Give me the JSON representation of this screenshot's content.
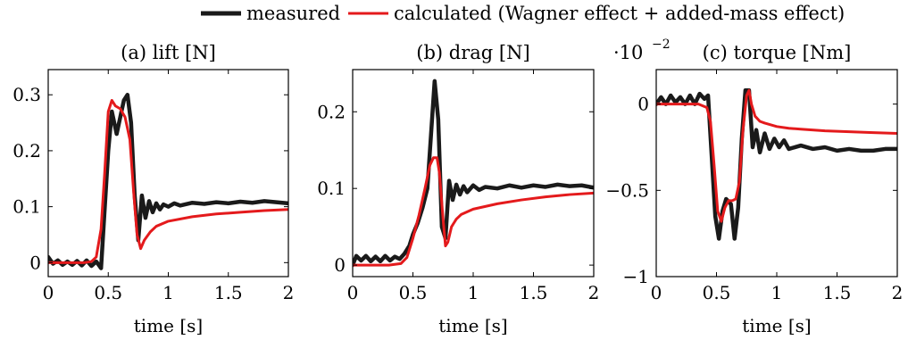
{
  "legend": {
    "items": [
      {
        "label": "measured",
        "color": "#1a1a1a"
      },
      {
        "label": "calculated (Wagner effect + added-mass effect)",
        "color": "#e41a1c"
      }
    ]
  },
  "chart_data": [
    {
      "type": "line",
      "title": "(a) lift [N]",
      "xlabel": "time [s]",
      "ylabel": "",
      "xlim": [
        0,
        2
      ],
      "ylim": [
        -0.025,
        0.345
      ],
      "xticks": [
        0,
        0.5,
        1,
        1.5,
        2
      ],
      "xtick_labels": [
        "0",
        "0.5",
        "1",
        "1.5",
        "2"
      ],
      "yticks": [
        0,
        0.1,
        0.2,
        0.3
      ],
      "ytick_labels": [
        "0",
        "0.1",
        "0.2",
        "0.3"
      ],
      "grid": false,
      "series": [
        {
          "name": "measured",
          "color": "#1a1a1a",
          "x": [
            0,
            0.04,
            0.08,
            0.12,
            0.16,
            0.2,
            0.24,
            0.28,
            0.32,
            0.36,
            0.4,
            0.44,
            0.46,
            0.5,
            0.53,
            0.57,
            0.6,
            0.63,
            0.66,
            0.69,
            0.72,
            0.75,
            0.78,
            0.81,
            0.84,
            0.87,
            0.9,
            0.93,
            0.96,
            1.0,
            1.05,
            1.1,
            1.2,
            1.3,
            1.4,
            1.5,
            1.6,
            1.7,
            1.8,
            1.9,
            2.0
          ],
          "y": [
            0.01,
            -0.002,
            0.004,
            -0.004,
            0.002,
            -0.004,
            0.003,
            -0.005,
            0.004,
            -0.006,
            0.002,
            -0.01,
            0.06,
            0.2,
            0.27,
            0.23,
            0.26,
            0.29,
            0.3,
            0.25,
            0.12,
            0.04,
            0.12,
            0.08,
            0.11,
            0.09,
            0.106,
            0.095,
            0.104,
            0.1,
            0.106,
            0.102,
            0.107,
            0.105,
            0.108,
            0.106,
            0.109,
            0.107,
            0.11,
            0.108,
            0.106
          ]
        },
        {
          "name": "calculated (Wagner effect + added-mass effect)",
          "color": "#e41a1c",
          "x": [
            0,
            0.3,
            0.36,
            0.4,
            0.44,
            0.47,
            0.5,
            0.53,
            0.56,
            0.6,
            0.64,
            0.68,
            0.71,
            0.74,
            0.77,
            0.8,
            0.85,
            0.9,
            1.0,
            1.2,
            1.4,
            1.6,
            1.8,
            2.0
          ],
          "y": [
            0,
            0,
            0.002,
            0.01,
            0.06,
            0.16,
            0.27,
            0.29,
            0.28,
            0.275,
            0.26,
            0.22,
            0.13,
            0.05,
            0.025,
            0.04,
            0.055,
            0.065,
            0.074,
            0.082,
            0.087,
            0.09,
            0.093,
            0.095
          ]
        }
      ]
    },
    {
      "type": "line",
      "title": "(b) drag [N]",
      "xlabel": "time [s]",
      "ylabel": "",
      "xlim": [
        0,
        2
      ],
      "ylim": [
        -0.015,
        0.255
      ],
      "xticks": [
        0,
        0.5,
        1,
        1.5,
        2
      ],
      "xtick_labels": [
        "0",
        "0.5",
        "1",
        "1.5",
        "2"
      ],
      "yticks": [
        0,
        0.1,
        0.2
      ],
      "ytick_labels": [
        "0",
        "0.1",
        "0.2"
      ],
      "grid": false,
      "series": [
        {
          "name": "measured",
          "color": "#1a1a1a",
          "x": [
            0,
            0.03,
            0.07,
            0.11,
            0.15,
            0.19,
            0.23,
            0.27,
            0.31,
            0.35,
            0.39,
            0.43,
            0.47,
            0.5,
            0.54,
            0.58,
            0.62,
            0.65,
            0.68,
            0.71,
            0.74,
            0.77,
            0.8,
            0.83,
            0.86,
            0.89,
            0.92,
            0.95,
            1.0,
            1.05,
            1.1,
            1.2,
            1.3,
            1.4,
            1.5,
            1.6,
            1.7,
            1.8,
            1.9,
            2.0
          ],
          "y": [
            0.0,
            0.012,
            0.006,
            0.012,
            0.005,
            0.011,
            0.005,
            0.012,
            0.006,
            0.011,
            0.008,
            0.015,
            0.025,
            0.04,
            0.055,
            0.075,
            0.1,
            0.17,
            0.24,
            0.19,
            0.05,
            0.035,
            0.11,
            0.085,
            0.105,
            0.092,
            0.103,
            0.095,
            0.104,
            0.098,
            0.102,
            0.1,
            0.104,
            0.101,
            0.104,
            0.102,
            0.105,
            0.103,
            0.104,
            0.101
          ]
        },
        {
          "name": "calculated (Wagner effect + added-mass effect)",
          "color": "#e41a1c",
          "x": [
            0,
            0.3,
            0.4,
            0.45,
            0.5,
            0.55,
            0.6,
            0.64,
            0.67,
            0.7,
            0.72,
            0.75,
            0.77,
            0.79,
            0.82,
            0.86,
            0.9,
            1.0,
            1.2,
            1.4,
            1.6,
            1.8,
            2.0
          ],
          "y": [
            0,
            0,
            0.002,
            0.01,
            0.035,
            0.065,
            0.1,
            0.13,
            0.14,
            0.14,
            0.12,
            0.06,
            0.025,
            0.03,
            0.05,
            0.06,
            0.066,
            0.073,
            0.08,
            0.085,
            0.089,
            0.092,
            0.094
          ]
        }
      ]
    },
    {
      "type": "line",
      "title": "(c) torque [Nm]",
      "scale_label_base": "·10",
      "scale_label_exp": "−2",
      "xlabel": "time [s]",
      "ylabel": "",
      "xlim": [
        0,
        2
      ],
      "ylim": [
        -1.0,
        0.2
      ],
      "xticks": [
        0,
        0.5,
        1,
        1.5,
        2
      ],
      "xtick_labels": [
        "0",
        "0.5",
        "1",
        "1.5",
        "2"
      ],
      "yticks": [
        0,
        -0.5,
        -1
      ],
      "ytick_labels": [
        "0",
        "−0.5",
        "−1"
      ],
      "grid": false,
      "series": [
        {
          "name": "measured",
          "color": "#1a1a1a",
          "x": [
            0,
            0.04,
            0.08,
            0.12,
            0.16,
            0.2,
            0.24,
            0.28,
            0.32,
            0.36,
            0.4,
            0.43,
            0.46,
            0.49,
            0.52,
            0.55,
            0.58,
            0.62,
            0.65,
            0.68,
            0.71,
            0.74,
            0.77,
            0.8,
            0.83,
            0.86,
            0.9,
            0.94,
            0.98,
            1.02,
            1.06,
            1.1,
            1.2,
            1.3,
            1.4,
            1.5,
            1.6,
            1.7,
            1.8,
            1.9,
            2.0
          ],
          "y": [
            0.0,
            0.04,
            0.0,
            0.05,
            0.01,
            0.04,
            0.0,
            0.05,
            0.0,
            0.06,
            0.03,
            0.05,
            -0.3,
            -0.65,
            -0.78,
            -0.62,
            -0.55,
            -0.58,
            -0.78,
            -0.6,
            -0.2,
            0.08,
            0.08,
            -0.25,
            -0.15,
            -0.28,
            -0.17,
            -0.26,
            -0.2,
            -0.25,
            -0.21,
            -0.26,
            -0.24,
            -0.26,
            -0.25,
            -0.27,
            -0.26,
            -0.27,
            -0.27,
            -0.26,
            -0.26
          ]
        },
        {
          "name": "calculated (Wagner effect + added-mass effect)",
          "color": "#e41a1c",
          "x": [
            0,
            0.35,
            0.42,
            0.45,
            0.48,
            0.51,
            0.54,
            0.57,
            0.6,
            0.63,
            0.66,
            0.69,
            0.72,
            0.75,
            0.77,
            0.79,
            0.82,
            0.86,
            0.9,
            1.0,
            1.1,
            1.2,
            1.4,
            1.6,
            1.8,
            2.0
          ],
          "y": [
            0,
            0,
            -0.02,
            -0.1,
            -0.35,
            -0.62,
            -0.68,
            -0.6,
            -0.56,
            -0.56,
            -0.55,
            -0.45,
            -0.15,
            0.05,
            0.08,
            0.0,
            -0.07,
            -0.1,
            -0.11,
            -0.13,
            -0.14,
            -0.145,
            -0.155,
            -0.16,
            -0.165,
            -0.17
          ]
        }
      ]
    }
  ]
}
